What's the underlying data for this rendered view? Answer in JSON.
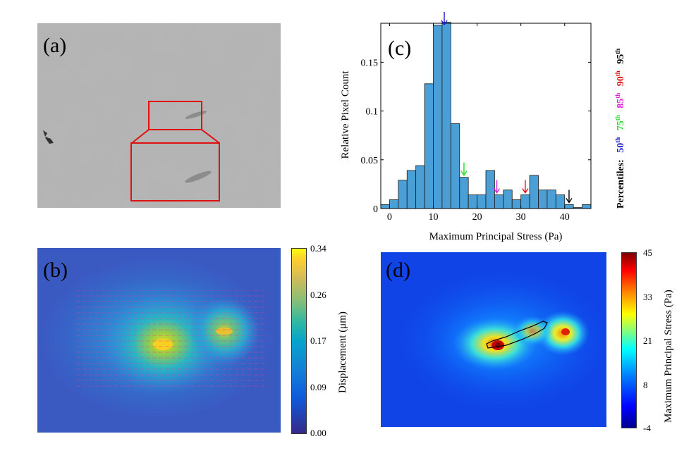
{
  "panels": {
    "a": {
      "label": "(a)"
    },
    "b": {
      "label": "(b)"
    },
    "c": {
      "label": "(c)"
    },
    "d": {
      "label": "(d)"
    }
  },
  "colorbar_b": {
    "label": "Displacement (μm)",
    "ticks": [
      "0.34",
      "0.26",
      "0.17",
      "0.09",
      "0.00"
    ]
  },
  "colorbar_d": {
    "label": "Maximum Principal Stress (Pa)",
    "ticks": [
      "45",
      "33",
      "21",
      "8",
      "-4"
    ]
  },
  "percentiles": {
    "title": "Percentiles:",
    "items": [
      {
        "base": "50",
        "sup": "th",
        "color": "#1a1acc",
        "value": 12.5
      },
      {
        "base": "75",
        "sup": "th",
        "color": "#22dd22",
        "value": 17
      },
      {
        "base": "85",
        "sup": "th",
        "color": "#dd22dd",
        "value": 24.5
      },
      {
        "base": "90",
        "sup": "th",
        "color": "#dd1111",
        "value": 31
      },
      {
        "base": "95",
        "sup": "th",
        "color": "#000000",
        "value": 41
      }
    ]
  },
  "chart_data": {
    "type": "bar",
    "xlabel": "Maximum Principal Stress (Pa)",
    "ylabel": "Relative Pixel Count",
    "xlim": [
      -2,
      46
    ],
    "ylim": [
      0,
      0.19
    ],
    "xticks": [
      0,
      10,
      20,
      30,
      40
    ],
    "yticks": [
      0,
      0.05,
      0.1,
      0.15
    ],
    "ytick_labels": [
      "0",
      "0.05",
      "0.1",
      "0.15"
    ],
    "bin_edges_start": -2,
    "bin_width": 2,
    "values": [
      0.004,
      0.009,
      0.029,
      0.039,
      0.044,
      0.128,
      0.188,
      0.191,
      0.087,
      0.032,
      0.014,
      0.014,
      0.039,
      0.014,
      0.019,
      0.009,
      0.014,
      0.034,
      0.019,
      0.019,
      0.014,
      0.004,
      0.001,
      0.004
    ],
    "bar_color": "#4a9fd6"
  }
}
